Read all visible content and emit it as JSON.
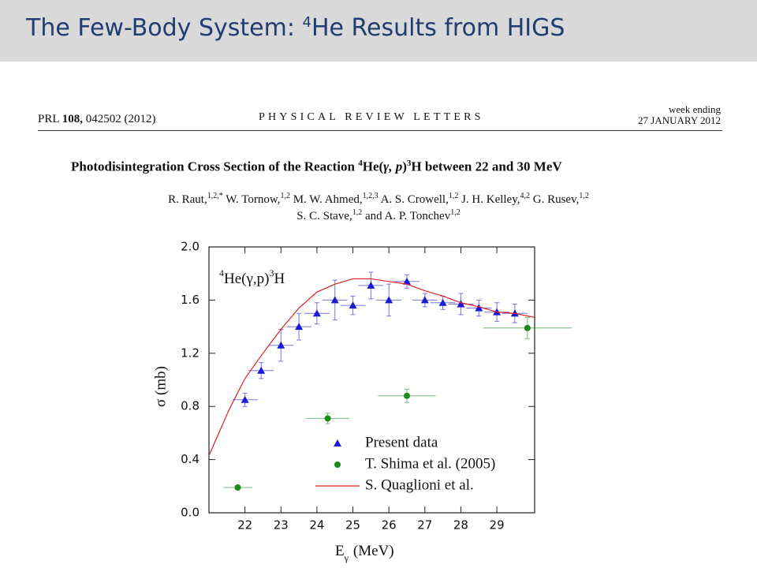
{
  "slide": {
    "title": {
      "before": "The Few-Body System:",
      "sup": "4",
      "after": "He Results from HIGS"
    }
  },
  "paper": {
    "journal_ref": {
      "journal": "PRL",
      "volume": "108,",
      "article": "042502 (2012)"
    },
    "journal_name": "PHYSICAL REVIEW LETTERS",
    "issue": {
      "line1": "week ending",
      "line2": "27 JANUARY 2012"
    },
    "title": {
      "lead": "Photodisintegration Cross Section of the Reaction",
      "sup1": "4",
      "nucleus": "He(",
      "reaction": "γ, p",
      "close": ")",
      "sup2": "3",
      "tail": "H between 22 and 30 MeV"
    },
    "authors": {
      "lines": [
        [
          {
            "name": "R. Raut,",
            "aff": "1,2,*"
          },
          {
            "name": "W. Tornow,",
            "aff": "1,2"
          },
          {
            "name": "M. W. Ahmed,",
            "aff": "1,2,3"
          },
          {
            "name": "A. S. Crowell,",
            "aff": "1,2"
          },
          {
            "name": "J. H. Kelley,",
            "aff": "4,2"
          },
          {
            "name": "G. Rusev,",
            "aff": "1,2"
          }
        ],
        [
          {
            "name": "S. C. Stave,",
            "aff": "1,2"
          },
          {
            "name": "and A. P. Tonchev",
            "aff": "1,2"
          }
        ]
      ]
    }
  },
  "chart_data": {
    "type": "scatter",
    "annotation": {
      "sup1": "4",
      "body": "He(γ,p)",
      "sup2": "3",
      "tail": "H"
    },
    "ylabel": "σ (mb)",
    "xlabel": {
      "main": "E",
      "sub": "γ",
      "unit": "(MeV)"
    },
    "xlim": [
      21,
      30.05
    ],
    "ylim": [
      0,
      2.0
    ],
    "xticks": [
      22,
      23,
      24,
      25,
      26,
      27,
      28,
      29
    ],
    "yticks": [
      {
        "value": 0,
        "label": "0.0"
      },
      0.4,
      0.8,
      1.2,
      1.6,
      {
        "value": 2.0,
        "label": "2.0"
      }
    ],
    "legend": "lower right",
    "series": [
      {
        "name": "Present data",
        "color": "#1a1ad6",
        "marker": "triangle",
        "x": [
          22.0,
          22.45,
          23.0,
          23.5,
          24.0,
          24.5,
          25.0,
          25.5,
          26.0,
          26.5,
          27.0,
          27.5,
          28.0,
          28.5,
          29.0,
          29.5
        ],
        "values": [
          0.85,
          1.07,
          1.26,
          1.4,
          1.5,
          1.6,
          1.56,
          1.71,
          1.6,
          1.74,
          1.6,
          1.58,
          1.57,
          1.54,
          1.51,
          1.5
        ],
        "xerr": [
          0.35,
          0.35,
          0.35,
          0.35,
          0.35,
          0.35,
          0.35,
          0.35,
          0.35,
          0.35,
          0.35,
          0.35,
          0.35,
          0.35,
          0.35,
          0.35
        ],
        "yerr": [
          0.05,
          0.06,
          0.12,
          0.1,
          0.08,
          0.15,
          0.07,
          0.1,
          0.12,
          0.05,
          0.05,
          0.05,
          0.08,
          0.06,
          0.07,
          0.07
        ]
      },
      {
        "name": "T. Shima et al. (2005)",
        "color": "#1a8a1a",
        "marker": "circle",
        "x": [
          21.8,
          24.3,
          26.5,
          29.85
        ],
        "values": [
          0.19,
          0.71,
          0.88,
          1.39
        ],
        "xerr": [
          0.4,
          0.6,
          0.8,
          1.23
        ],
        "yerr": [
          0.01,
          0.04,
          0.05,
          0.08
        ]
      },
      {
        "name": "S. Quaglioni et al.",
        "color": "#e02020",
        "marker": "line",
        "x": [
          21.0,
          21.55,
          22.0,
          22.5,
          23.0,
          23.5,
          24.0,
          24.5,
          25.0,
          25.5,
          26.0,
          26.5,
          27.0,
          27.5,
          28.0,
          28.5,
          29.0,
          29.5,
          30.05
        ],
        "values": [
          0.43,
          0.77,
          1.01,
          1.2,
          1.38,
          1.54,
          1.66,
          1.72,
          1.76,
          1.76,
          1.74,
          1.72,
          1.67,
          1.63,
          1.58,
          1.55,
          1.51,
          1.5,
          1.47
        ]
      }
    ]
  }
}
